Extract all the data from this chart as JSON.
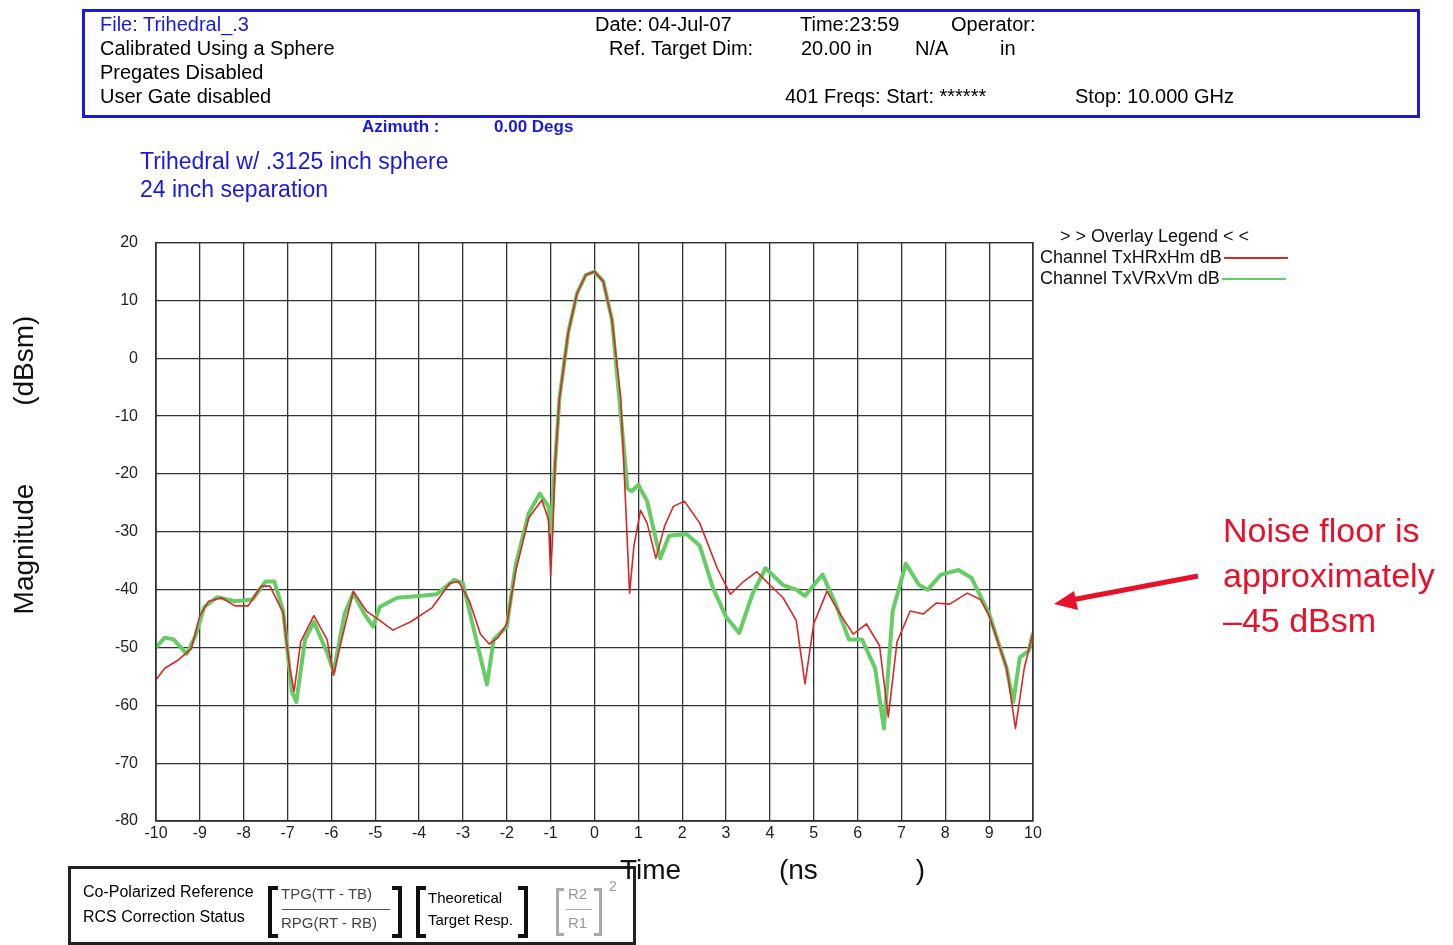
{
  "chart_data": {
    "type": "line",
    "title": "Trihedral w/ .3125 inch sphere",
    "subtitle": "24 inch separation",
    "xlabel": "Time (ns )",
    "ylabel": "Magnitude (dBsm)",
    "legend_title": "> > Overlay Legend < <",
    "legend": "right",
    "grid": true,
    "marker": "none",
    "line_style": "solid",
    "xlim": [
      -10,
      10
    ],
    "xticks": [
      -10,
      -9,
      -8,
      -7,
      -6,
      -5,
      -4,
      -3,
      -2,
      -1,
      0,
      1,
      2,
      3,
      4,
      5,
      6,
      7,
      8,
      9,
      10
    ],
    "ylim": [
      -80,
      20
    ],
    "yticks": [
      -80,
      -70,
      -60,
      -50,
      -40,
      -30,
      -20,
      -10,
      0,
      10,
      20
    ],
    "annotations": [
      "File: Trihedral_.3",
      "Calibrated Using a Sphere",
      "Pregates Disabled",
      "User Gate disabled",
      "Date: 04-Jul-07",
      "Time:23:59",
      "Operator:",
      "Ref. Target Dim:",
      "20.00 in",
      "N/A",
      "in",
      "401 Freqs: Start: ******",
      "Stop: 10.000 GHz",
      "Azimuth :",
      "0.00 Degs",
      "Noise floor is approximately –45 dBsm",
      "Co-Polarized Reference",
      "RCS Correction Status",
      "TPG(TT - TB)",
      "RPG(RT - RB)",
      "Theoretical",
      "Target Resp.",
      "R2",
      "R1",
      "2"
    ],
    "series": [
      {
        "name": "Channel TxHRxHm dB",
        "color": "#d62828",
        "x": [
          -10,
          -9.8,
          -9.5,
          -9.2,
          -9,
          -8.8,
          -8.5,
          -8.2,
          -7.9,
          -7.6,
          -7.4,
          -7.1,
          -6.95,
          -6.85,
          -6.7,
          -6.4,
          -6.1,
          -5.95,
          -5.8,
          -5.5,
          -5.2,
          -4.9,
          -4.6,
          -4.2,
          -3.7,
          -3.3,
          -3.1,
          -2.85,
          -2.6,
          -2.4,
          -2.2,
          -2,
          -1.8,
          -1.5,
          -1.2,
          -1.05,
          -1,
          -0.95,
          -0.9,
          -0.8,
          -0.6,
          -0.4,
          -0.2,
          0,
          0.2,
          0.4,
          0.6,
          0.7,
          0.8,
          0.9,
          1.05,
          1.2,
          1.4,
          1.6,
          1.8,
          2.05,
          2.4,
          2.8,
          3.1,
          3.4,
          3.7,
          4,
          4.3,
          4.6,
          4.8,
          5,
          5.3,
          5.6,
          5.9,
          6.2,
          6.5,
          6.7,
          6.9,
          7.2,
          7.5,
          7.8,
          8.1,
          8.5,
          8.8,
          9,
          9.4,
          9.6,
          9.8,
          10
        ],
        "values": [
          -55.6,
          -53.6,
          -52.2,
          -50.3,
          -44.5,
          -42,
          -41.4,
          -42.8,
          -42.8,
          -39.4,
          -39.4,
          -44,
          -53.6,
          -57.6,
          -49,
          -44.5,
          -48.6,
          -54.8,
          -49.7,
          -40.3,
          -43.7,
          -45.3,
          -47,
          -45.6,
          -43.1,
          -38.9,
          -38.6,
          -42,
          -47.7,
          -49.4,
          -48.3,
          -45.9,
          -36.9,
          -27.6,
          -24.5,
          -27.9,
          -37.6,
          -30,
          -18.3,
          -7,
          4.4,
          11.2,
          14.4,
          15,
          13.3,
          6.6,
          -7,
          -23.6,
          -40.6,
          -32.4,
          -26.3,
          -28.5,
          -34.6,
          -29,
          -25.6,
          -24.7,
          -28.5,
          -36.3,
          -40.8,
          -38.6,
          -36.9,
          -39.2,
          -41.4,
          -45.3,
          -56.3,
          -45.9,
          -40.3,
          -44.2,
          -47.7,
          -45.9,
          -49.7,
          -62,
          -49,
          -43.7,
          -44.2,
          -42.3,
          -42.5,
          -40.6,
          -41.7,
          -44.5,
          -53.6,
          -64,
          -53.6,
          -47.5
        ]
      },
      {
        "name": "Channel TxVRxVm dB",
        "color": "#66cc66",
        "x": [
          -10,
          -9.8,
          -9.6,
          -9.3,
          -9.1,
          -8.9,
          -8.6,
          -8.2,
          -7.8,
          -7.5,
          -7.3,
          -7.1,
          -6.9,
          -6.8,
          -6.6,
          -6.4,
          -6.1,
          -5.95,
          -5.7,
          -5.5,
          -5.25,
          -5.05,
          -4.9,
          -4.5,
          -4,
          -3.6,
          -3.2,
          -3,
          -2.7,
          -2.45,
          -2.3,
          -2,
          -1.8,
          -1.5,
          -1.25,
          -1.05,
          -1,
          -0.9,
          -0.8,
          -0.6,
          -0.4,
          -0.2,
          0,
          0.2,
          0.4,
          0.6,
          0.75,
          0.85,
          1,
          1.2,
          1.5,
          1.7,
          2.1,
          2.4,
          2.7,
          3,
          3.3,
          3.6,
          3.9,
          4.3,
          4.6,
          4.8,
          5.2,
          5.5,
          5.8,
          6.1,
          6.4,
          6.6,
          6.8,
          7.1,
          7.4,
          7.6,
          7.9,
          8.3,
          8.6,
          9,
          9.4,
          9.55,
          9.7,
          9.9,
          10
        ],
        "values": [
          -50,
          -48.3,
          -48.6,
          -51.1,
          -48,
          -43,
          -41.3,
          -42,
          -41.7,
          -38.6,
          -38.6,
          -43.7,
          -57.7,
          -59.4,
          -48.6,
          -45.6,
          -50.8,
          -54.2,
          -44.2,
          -40.6,
          -44.2,
          -46.4,
          -43,
          -41.4,
          -41.1,
          -40.8,
          -38.3,
          -38.9,
          -48.6,
          -56.4,
          -48.6,
          -46.4,
          -35.8,
          -26.8,
          -23.4,
          -25.6,
          -30.1,
          -18.3,
          -7,
          4.4,
          11.2,
          14.4,
          15,
          13.3,
          6.6,
          -9.8,
          -22.5,
          -23,
          -21.9,
          -24.7,
          -34.6,
          -30.7,
          -30.4,
          -32.4,
          -39.7,
          -44.7,
          -47.5,
          -40.8,
          -36.3,
          -39.2,
          -40,
          -41.1,
          -37.4,
          -42.5,
          -48.6,
          -48.6,
          -53.6,
          -64,
          -43.7,
          -35.5,
          -39.2,
          -40,
          -37.4,
          -36.6,
          -38,
          -44.2,
          -53.6,
          -59.4,
          -51.7,
          -50.6,
          -47.5
        ]
      }
    ]
  }
}
